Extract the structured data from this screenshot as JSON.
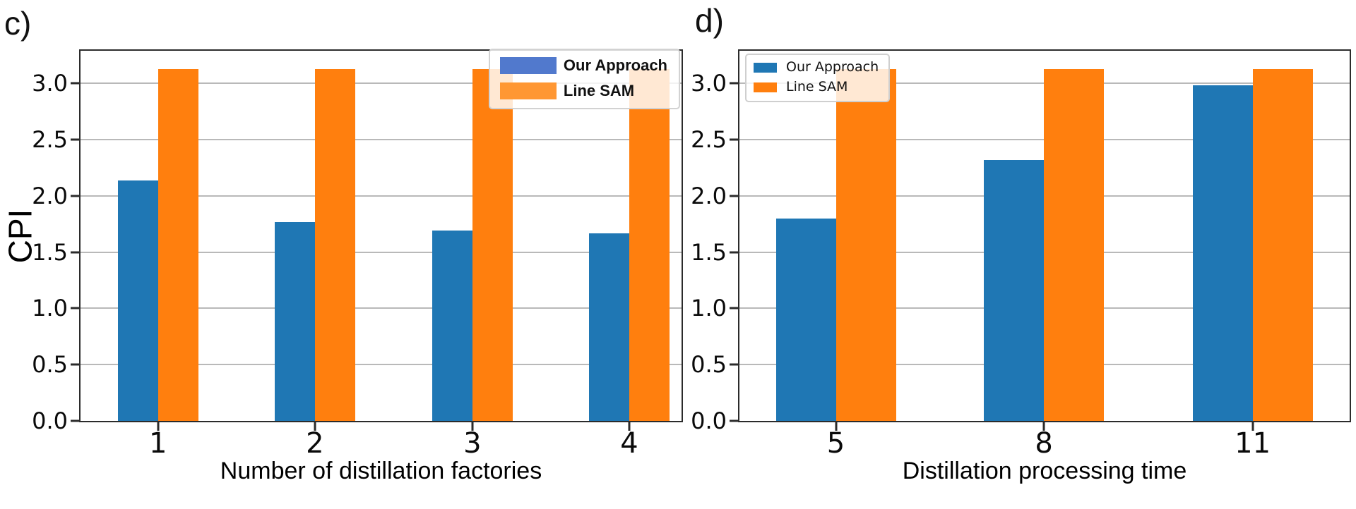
{
  "chart_data": [
    {
      "type": "bar",
      "panel_label": "c)",
      "categories": [
        "1",
        "2",
        "3",
        "4"
      ],
      "series": [
        {
          "name": "Our Approach",
          "color": "#1f77b4",
          "legend_color": "#5179cd",
          "values": [
            2.14,
            1.77,
            1.69,
            1.67
          ]
        },
        {
          "name": "Line SAM",
          "color": "#ff7f0e",
          "legend_color": "#ff9733",
          "values": [
            3.13,
            3.13,
            3.13,
            3.13
          ]
        }
      ],
      "xlabel": "Number of distillation factories",
      "ylabel": "CPI",
      "ylim": [
        0,
        3.29
      ],
      "yticks": [
        0,
        0.5,
        1,
        1.5,
        2,
        2.5,
        3
      ],
      "ytick_labels": [
        "0.0",
        "0.5",
        "1.0",
        "1.5",
        "2.0",
        "2.5",
        "3.0"
      ],
      "grid": true,
      "legend_position": "upper right",
      "legend_bold": true
    },
    {
      "type": "bar",
      "panel_label": "d)",
      "categories": [
        "5",
        "8",
        "11"
      ],
      "series": [
        {
          "name": "Our Approach",
          "color": "#1f77b4",
          "legend_color": "#1f77b4",
          "values": [
            1.8,
            2.32,
            2.98
          ]
        },
        {
          "name": "Line SAM",
          "color": "#ff7f0e",
          "legend_color": "#ff7f0e",
          "values": [
            3.13,
            3.13,
            3.13
          ]
        }
      ],
      "xlabel": "Distillation processing time",
      "ylabel": "",
      "ylim": [
        0,
        3.29
      ],
      "yticks": [
        0,
        0.5,
        1,
        1.5,
        2,
        2.5,
        3
      ],
      "ytick_labels": [
        "0.0",
        "0.5",
        "1.0",
        "1.5",
        "2.0",
        "2.5",
        "3.0"
      ],
      "grid": true,
      "legend_position": "upper left",
      "legend_bold": false
    }
  ],
  "colors": {
    "bar_blue": "#1f77b4",
    "bar_orange": "#ff7f0e",
    "legend_c_blue": "#5179cd",
    "legend_c_orange": "#ff9733",
    "gridline": "#b9b9b9",
    "spine": "#2b2b2b",
    "background": "#ffffff"
  }
}
